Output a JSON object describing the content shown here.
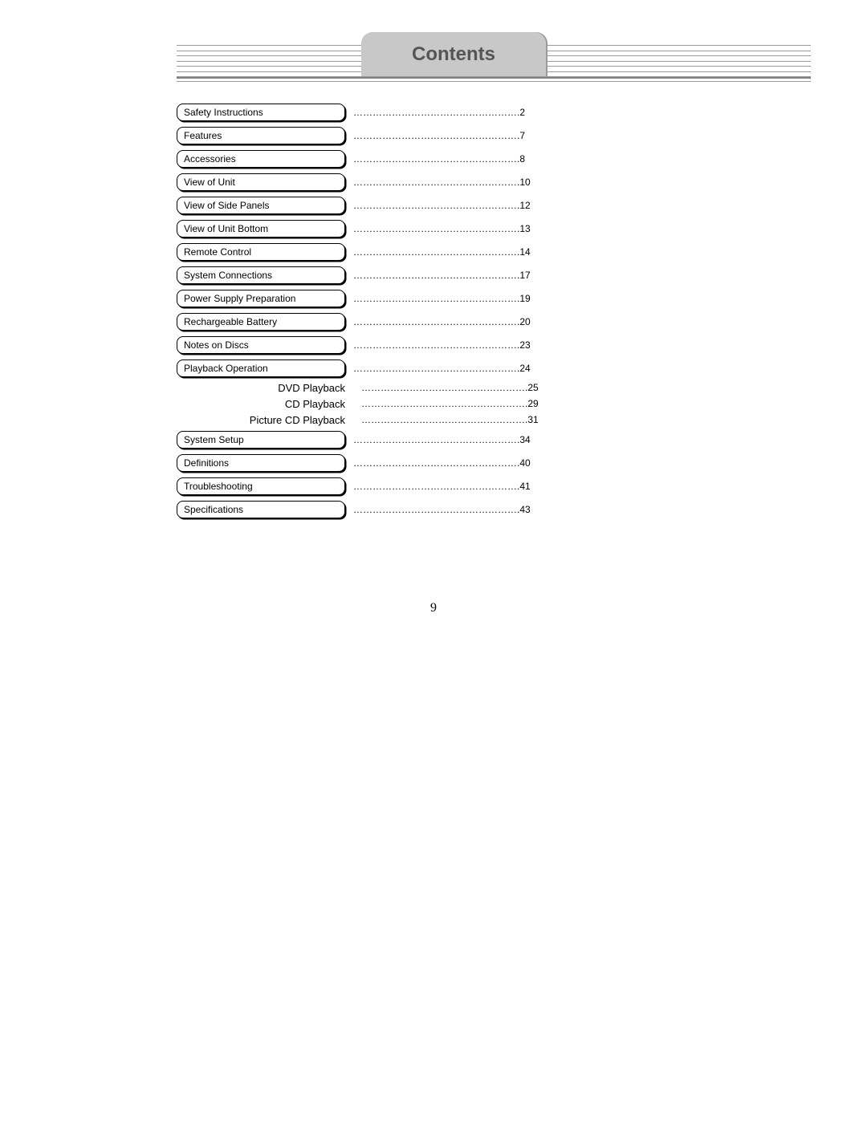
{
  "header": {
    "title": "Contents",
    "line_color": "#9a9a9a",
    "tab_bg": "#c8c8c8",
    "title_color": "#555555",
    "num_thin_lines": 7
  },
  "page_number": "9",
  "toc": {
    "entries": [
      {
        "label": "Safety Instructions",
        "page": "2",
        "type": "main"
      },
      {
        "label": "Features",
        "page": "7",
        "type": "main"
      },
      {
        "label": "Accessories",
        "page": "8",
        "type": "main"
      },
      {
        "label": "View of Unit",
        "page": "10",
        "type": "main"
      },
      {
        "label": "View of Side Panels",
        "page": "12",
        "type": "main"
      },
      {
        "label": "View of Unit Bottom",
        "page": "13",
        "type": "main"
      },
      {
        "label": "Remote Control",
        "page": "14",
        "type": "main"
      },
      {
        "label": "System Connections",
        "page": "17",
        "type": "main"
      },
      {
        "label": "Power Supply Preparation",
        "page": "19",
        "type": "main"
      },
      {
        "label": "Rechargeable Battery",
        "page": "20",
        "type": "main"
      },
      {
        "label": "Notes on Discs",
        "page": "23",
        "type": "main"
      },
      {
        "label": "Playback Operation",
        "page": "24",
        "type": "main"
      },
      {
        "label": "DVD Playback",
        "page": "25",
        "type": "sub"
      },
      {
        "label": "CD Playback",
        "page": "29",
        "type": "sub"
      },
      {
        "label": "Picture CD Playback",
        "page": "31",
        "type": "sub"
      },
      {
        "label": "System Setup",
        "page": "34",
        "type": "main"
      },
      {
        "label": "Definitions",
        "page": "40",
        "type": "main"
      },
      {
        "label": "Troubleshooting",
        "page": "41",
        "type": "main"
      },
      {
        "label": "Specifications",
        "page": "43",
        "type": "main"
      }
    ],
    "dot_segment": "……………………………………………."
  }
}
